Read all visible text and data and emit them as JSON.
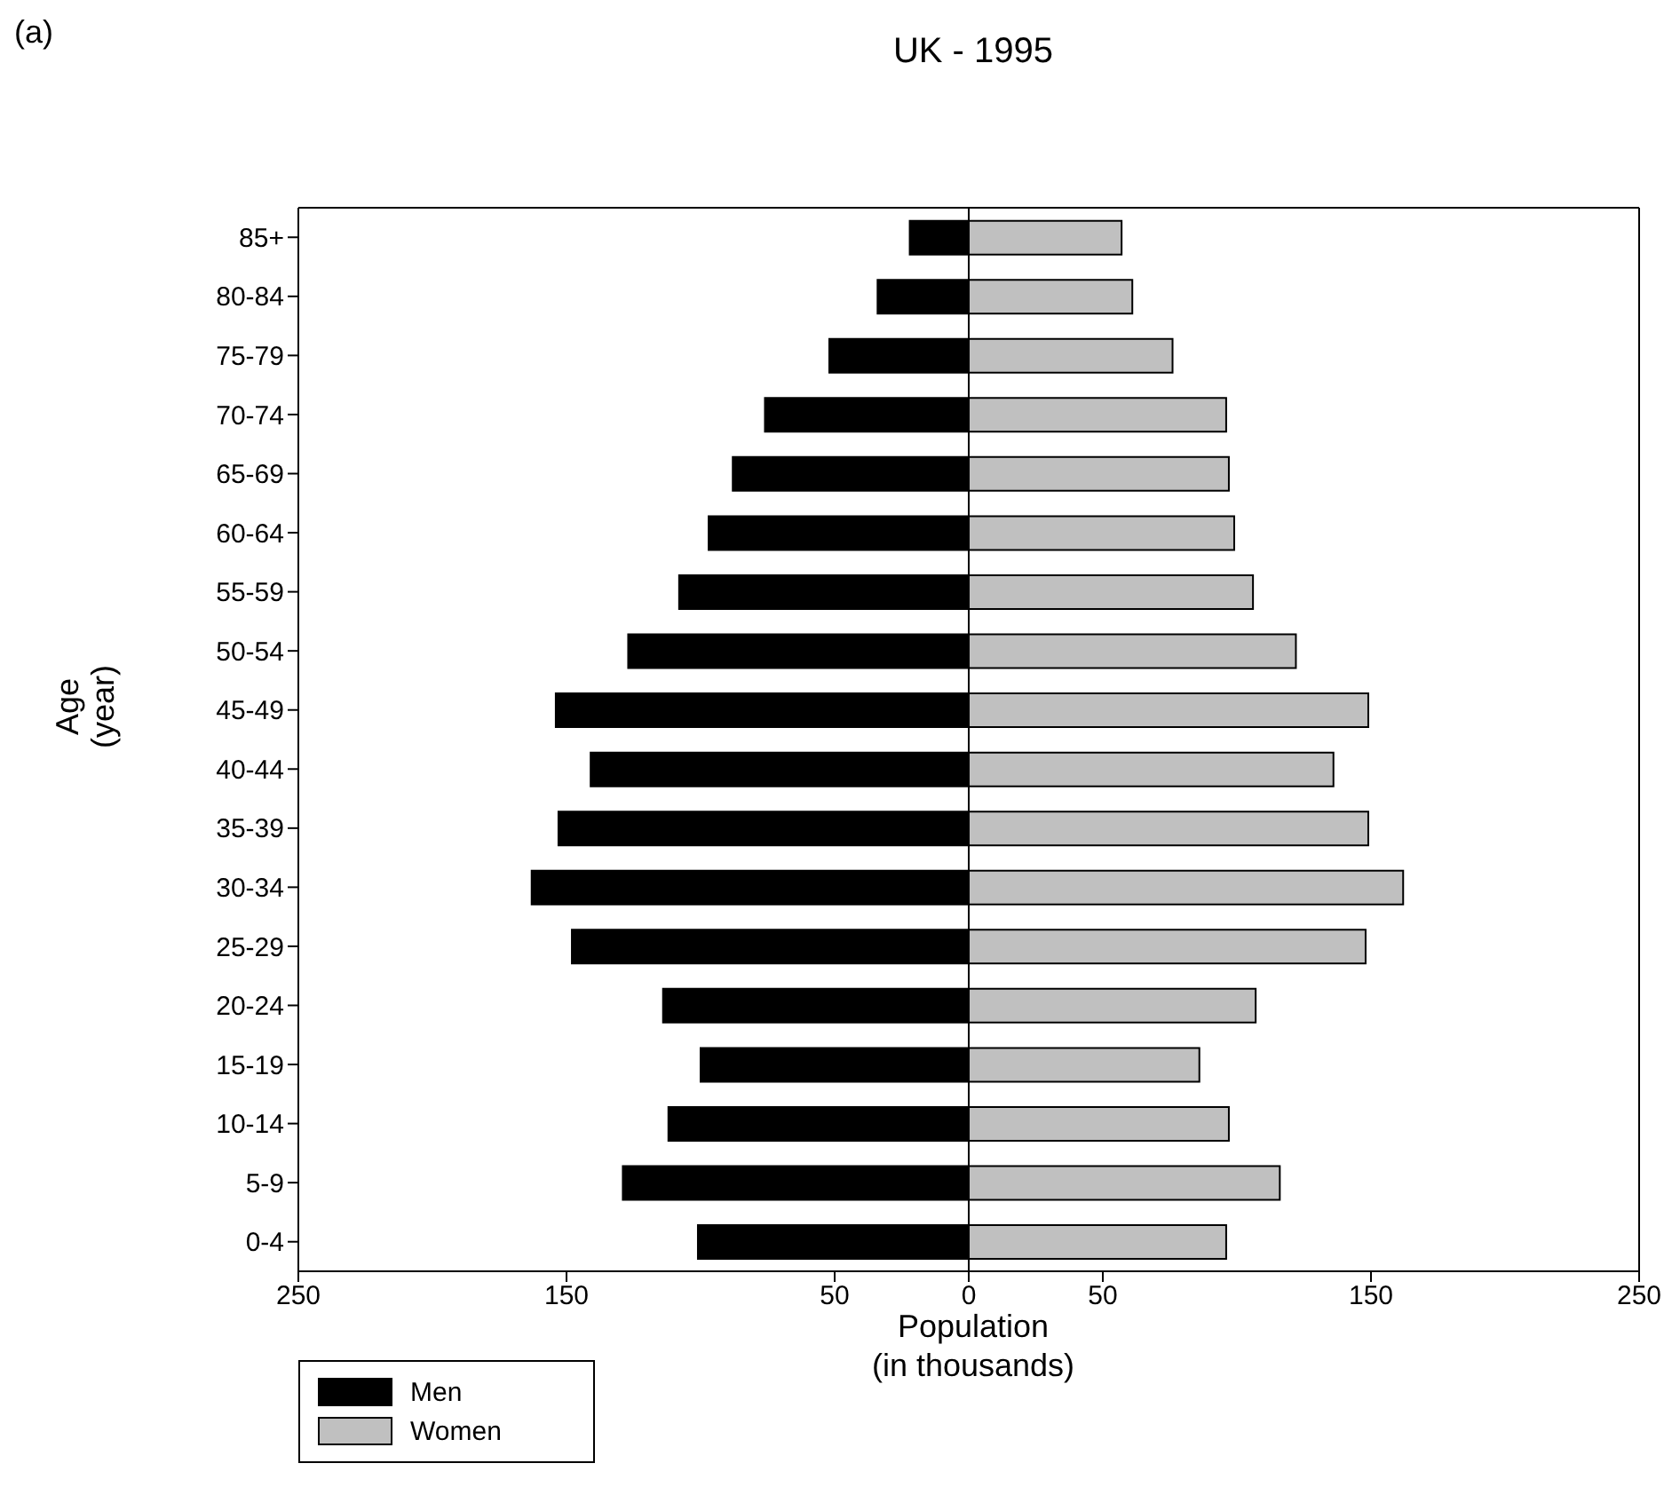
{
  "chart_data": {
    "type": "bar",
    "orientation": "horizontal",
    "stacked": true,
    "title": "UK - 1995",
    "xlabel": "Population\n(in thousands)",
    "ylabel": "Age\n(year)",
    "annotations": [
      "(a)"
    ],
    "categories": [
      "85+",
      "80-84",
      "75-79",
      "70-74",
      "65-69",
      "60-64",
      "55-59",
      "50-54",
      "45-49",
      "40-44",
      "35-39",
      "30-34",
      "25-29",
      "20-24",
      "15-19",
      "10-14",
      "5-9",
      "0-4"
    ],
    "series": [
      {
        "name": "Men",
        "color": "#000000",
        "values": [
          -22,
          -34,
          -52,
          -76,
          -88,
          -97,
          -108,
          -127,
          -154,
          -141,
          -153,
          -163,
          -148,
          -114,
          -100,
          -112,
          -129,
          -101
        ]
      },
      {
        "name": "Women",
        "color": "#c0c0c0",
        "values": [
          57,
          61,
          76,
          96,
          97,
          99,
          106,
          122,
          149,
          136,
          149,
          162,
          148,
          107,
          86,
          97,
          116,
          96
        ]
      }
    ],
    "xlim": [
      -250,
      250
    ],
    "xticks": [
      {
        "value": -250,
        "label": "250"
      },
      {
        "value": -150,
        "label": "150"
      },
      {
        "value": -50,
        "label": "50"
      },
      0,
      50,
      150,
      250
    ],
    "ref_lines": [
      {
        "axis": "x",
        "value": 0,
        "color": "#000000"
      }
    ],
    "grid": false,
    "legend": "bottom left"
  }
}
